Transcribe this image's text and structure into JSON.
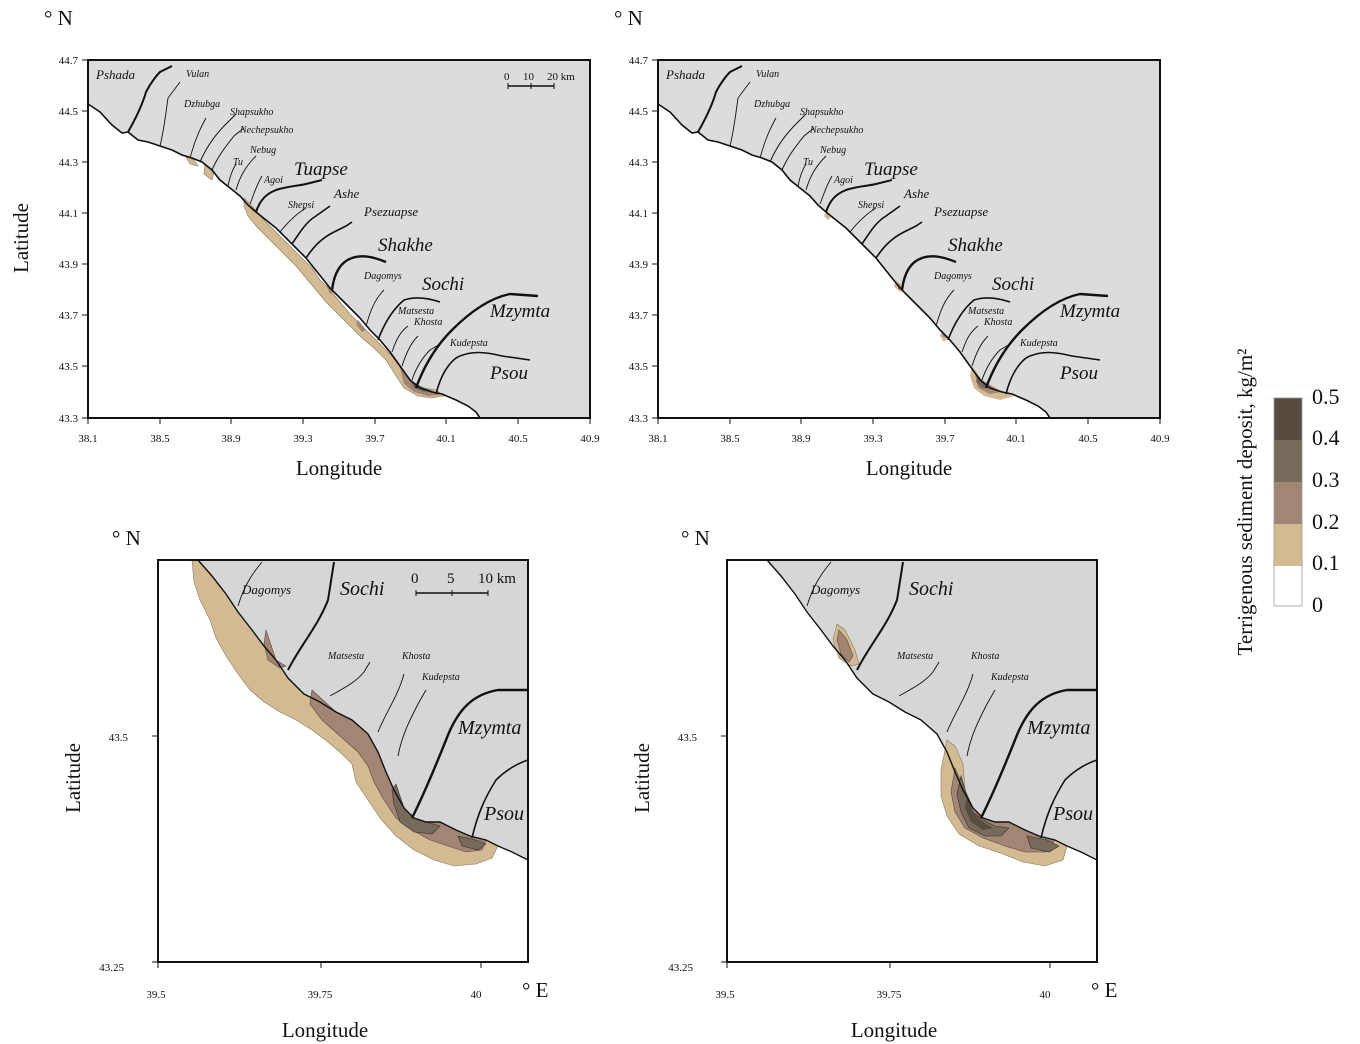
{
  "colors": {
    "land": "#dcdcdc",
    "sea": "#ffffff",
    "coast": "#111111",
    "river": "#111111",
    "legend": [
      "#ffffff",
      "#d2bb92",
      "#a38574",
      "#766a5b",
      "#584c41"
    ]
  },
  "axis_labels": {
    "latitude": "Latitude",
    "longitude": "Longitude",
    "north": "° N",
    "east": "° E"
  },
  "maps": {
    "overview": {
      "lon_ticks": [
        "38.1",
        "38.5",
        "38.9",
        "39.3",
        "39.7",
        "40.1",
        "40.5",
        "40.9"
      ],
      "lat_ticks": [
        "44.7",
        "44.5",
        "44.3",
        "44.1",
        "43.9",
        "43.7",
        "43.5",
        "43.3"
      ],
      "scale": [
        "0",
        "10",
        "20 km"
      ]
    },
    "zoom": {
      "lon_ticks": [
        "39.5",
        "39.75",
        "40"
      ],
      "lat_ticks": [
        "43.5",
        "43.25"
      ],
      "scale": [
        "0",
        "5",
        "10 km"
      ]
    }
  },
  "rivers": {
    "pshada": "Pshada",
    "vulan": "Vulan",
    "dzhubga": "Dzhubga",
    "shapsukho": "Shapsukho",
    "nechepsukho": "Nechepsukho",
    "nebug": "Nebug",
    "tu": "Tu",
    "agoi": "Agoi",
    "tuapse": "Tuapse",
    "ashe": "Ashe",
    "shepsi": "Shepsi",
    "psezuapse": "Psezuapse",
    "shakhe": "Shakhe",
    "dagomys": "Dagomys",
    "sochi": "Sochi",
    "matsesta": "Matsesta",
    "khosta": "Khosta",
    "kudepsta": "Kudepsta",
    "mzymta": "Mzymta",
    "psou": "Psou"
  },
  "legend": {
    "title": "Terrigenous sediment deposit, kg/m²",
    "values": [
      "0.5",
      "0.4",
      "0.3",
      "0.2",
      "0.1",
      "0"
    ]
  }
}
